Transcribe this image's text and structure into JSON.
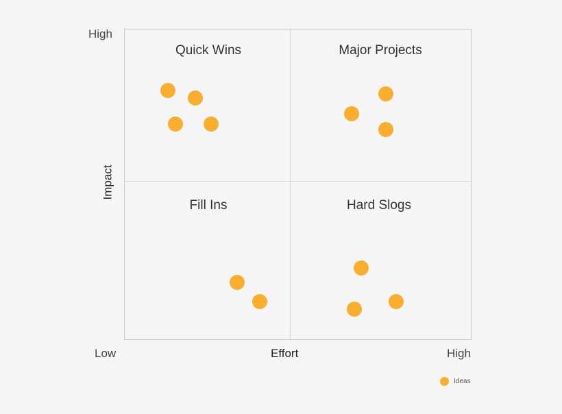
{
  "chart_data": {
    "type": "scatter",
    "title": "",
    "xlabel": "Effort",
    "ylabel": "Impact",
    "xlim": [
      0,
      100
    ],
    "ylim": [
      0,
      100
    ],
    "x_tick_labels": {
      "low": "Low",
      "high": "High"
    },
    "y_tick_labels": {
      "low": "Low",
      "high": "High"
    },
    "grid": false,
    "dividers": {
      "x": 47.7,
      "y": 51.1
    },
    "legend_position": "bottom-right",
    "quadrants": [
      {
        "name": "Quick Wins",
        "position": "top-left"
      },
      {
        "name": "Major Projects",
        "position": "top-right"
      },
      {
        "name": "Fill Ins",
        "position": "bottom-left"
      },
      {
        "name": "Hard Slogs",
        "position": "bottom-right"
      }
    ],
    "series": [
      {
        "name": "Ideas",
        "color": "#f9ae2e",
        "points": [
          {
            "x": 12.4,
            "y": 80.2,
            "quadrant": "Quick Wins"
          },
          {
            "x": 20.3,
            "y": 77.8,
            "quadrant": "Quick Wins"
          },
          {
            "x": 14.6,
            "y": 69.4,
            "quadrant": "Quick Wins"
          },
          {
            "x": 24.9,
            "y": 69.4,
            "quadrant": "Quick Wins"
          },
          {
            "x": 75.5,
            "y": 79.1,
            "quadrant": "Major Projects"
          },
          {
            "x": 65.5,
            "y": 72.7,
            "quadrant": "Major Projects"
          },
          {
            "x": 75.5,
            "y": 67.8,
            "quadrant": "Major Projects"
          },
          {
            "x": 32.5,
            "y": 18.3,
            "quadrant": "Fill Ins"
          },
          {
            "x": 39.1,
            "y": 12.1,
            "quadrant": "Fill Ins"
          },
          {
            "x": 68.4,
            "y": 23.1,
            "quadrant": "Hard Slogs"
          },
          {
            "x": 66.3,
            "y": 9.7,
            "quadrant": "Hard Slogs"
          },
          {
            "x": 78.5,
            "y": 12.1,
            "quadrant": "Hard Slogs"
          }
        ]
      }
    ]
  },
  "labels": {
    "y_high": "High",
    "x_low": "Low",
    "x_high": "High",
    "x_title": "Effort",
    "y_title": "Impact",
    "legend": "Ideas",
    "quadrant_tl": "Quick Wins",
    "quadrant_tr": "Major Projects",
    "quadrant_bl": "Fill Ins",
    "quadrant_br": "Hard Slogs"
  },
  "colors": {
    "background": "#f5f5f5",
    "border": "#c8c8c8",
    "divider": "#d6d6d6",
    "dot": "#f9ae2e"
  }
}
